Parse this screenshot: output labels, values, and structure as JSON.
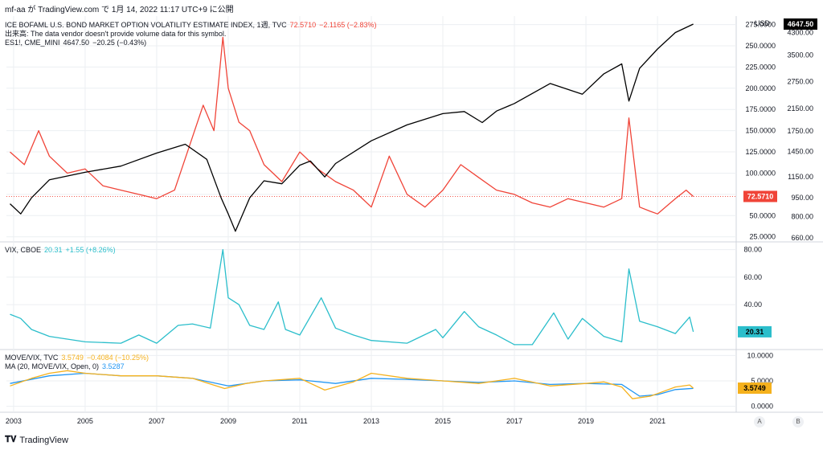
{
  "header": {
    "text": "mf-aa が TradingView.com で 1月 14, 2022 11:17 UTC+9 に公開"
  },
  "footer": {
    "brand": "TradingView"
  },
  "buttons": {
    "a": "A",
    "b": "B"
  },
  "colors": {
    "move": "#f04438",
    "es": "#000000",
    "vix": "#2bbecb",
    "ratio": "#f5b11d",
    "ma": "#2196f3",
    "grid": "#eceff2"
  },
  "pane1": {
    "legend": {
      "move_title": "ICE BOFAML U.S. BOND MARKET OPTION VOLATILITY ESTIMATE INDEX, 1週, TVC",
      "move_value": "72.5710",
      "move_change": "−2.1165 (−2.83%)",
      "volume_note": "出来高: The data vendor doesn't provide volume data for this symbol.",
      "es_title": "ES1!, CME_MINI",
      "es_value": "4647.50",
      "es_change": "−20.25 (−0.43%)"
    },
    "left_axis_currency": "USD",
    "right_axis_currency": "USD",
    "right_axis_prefix": "5",
    "move_ticks": [
      "25.0000",
      "50.0000",
      "75.0000",
      "100.0000",
      "125.0000",
      "150.0000",
      "175.0000",
      "200.0000",
      "225.0000",
      "250.0000",
      "275.0000"
    ],
    "es_ticks": [
      "660.00",
      "800.00",
      "950.00",
      "1150.00",
      "1450.00",
      "1750.00",
      "2150.00",
      "2750.00",
      "3500.00",
      "4300.00"
    ],
    "move_last": "72.5710",
    "es_last": "4647.50"
  },
  "pane2": {
    "legend": {
      "title": "VIX, CBOE",
      "value": "20.31",
      "change": "+1.55 (+8.26%)"
    },
    "ticks": [
      "40.00",
      "60.00",
      "80.00"
    ],
    "last": "20.31"
  },
  "pane3": {
    "legend": {
      "title": "MOVE/VIX, TVC",
      "value": "3.5749",
      "change": "−0.4084 (−10.25%)",
      "ma_title": "MA (20, MOVE/VIX, Open, 0)",
      "ma_value": "3.5287"
    },
    "ticks": [
      "0.0000",
      "5.0000",
      "10.0000"
    ],
    "last": "3.5749"
  },
  "x_ticks": [
    "2003",
    "2005",
    "2007",
    "2009",
    "2011",
    "2013",
    "2015",
    "2017",
    "2019",
    "2021"
  ],
  "chart_data": [
    {
      "type": "line",
      "x_unit": "year",
      "series": [
        {
          "name": "ICE BOFAML U.S. BOND MARKET OPTION VOLATILITY ESTIMATE INDEX, 1週, TVC",
          "axis": "left",
          "x": [
            2002.9,
            2003.3,
            2003.7,
            2004.0,
            2004.5,
            2005.0,
            2005.5,
            2006.0,
            2006.5,
            2007.0,
            2007.5,
            2007.9,
            2008.3,
            2008.6,
            2008.85,
            2009.0,
            2009.3,
            2009.6,
            2010.0,
            2010.5,
            2011.0,
            2011.5,
            2012.0,
            2012.5,
            2013.0,
            2013.5,
            2014.0,
            2014.5,
            2015.0,
            2015.5,
            2016.0,
            2016.5,
            2017.0,
            2017.5,
            2018.0,
            2018.5,
            2019.0,
            2019.5,
            2020.0,
            2020.2,
            2020.5,
            2020.8,
            2021.0,
            2021.5,
            2021.8,
            2022.0
          ],
          "y": [
            125,
            110,
            150,
            120,
            100,
            105,
            85,
            80,
            75,
            70,
            80,
            130,
            180,
            150,
            260,
            200,
            160,
            150,
            110,
            90,
            125,
            105,
            90,
            80,
            60,
            120,
            75,
            60,
            80,
            110,
            95,
            80,
            75,
            65,
            60,
            70,
            65,
            60,
            70,
            165,
            60,
            55,
            52,
            70,
            80,
            72.571
          ]
        },
        {
          "name": "ES1!, CME_MINI",
          "axis": "right",
          "x": [
            2002.9,
            2003.2,
            2003.5,
            2004.0,
            2005.0,
            2006.0,
            2007.0,
            2007.8,
            2008.4,
            2008.8,
            2009.0,
            2009.2,
            2009.6,
            2010.0,
            2010.5,
            2011.0,
            2011.3,
            2011.7,
            2012.0,
            2013.0,
            2014.0,
            2015.0,
            2015.6,
            2016.1,
            2016.5,
            2017.0,
            2018.0,
            2018.9,
            2019.5,
            2020.0,
            2020.2,
            2020.5,
            2021.0,
            2021.5,
            2022.0
          ],
          "y": [
            900,
            820,
            950,
            1120,
            1200,
            1270,
            1430,
            1550,
            1350,
            950,
            820,
            700,
            950,
            1110,
            1080,
            1280,
            1330,
            1150,
            1300,
            1600,
            1850,
            2050,
            2090,
            1890,
            2100,
            2250,
            2700,
            2450,
            2950,
            3230,
            2300,
            3100,
            3700,
            4300,
            4647.5
          ]
        }
      ],
      "left_ylim": [
        20,
        285
      ],
      "right_ylim": [
        640,
        5000
      ],
      "right_scale": "log"
    },
    {
      "type": "line",
      "x_unit": "year",
      "series": [
        {
          "name": "VIX, CBOE",
          "x": [
            2002.9,
            2003.2,
            2003.5,
            2004.0,
            2005.0,
            2006.0,
            2006.5,
            2007.0,
            2007.6,
            2008.0,
            2008.5,
            2008.85,
            2009.0,
            2009.3,
            2009.6,
            2010.0,
            2010.4,
            2010.6,
            2011.0,
            2011.6,
            2012.0,
            2012.5,
            2013.0,
            2014.0,
            2014.8,
            2015.0,
            2015.6,
            2016.0,
            2016.5,
            2017.0,
            2017.5,
            2018.1,
            2018.5,
            2018.9,
            2019.5,
            2020.0,
            2020.2,
            2020.5,
            2021.0,
            2021.5,
            2021.9,
            2022.0
          ],
          "y": [
            33,
            30,
            22,
            17,
            13,
            12,
            18,
            12,
            25,
            26,
            23,
            80,
            45,
            40,
            25,
            22,
            42,
            22,
            18,
            45,
            23,
            18,
            14,
            12,
            22,
            16,
            35,
            24,
            18,
            11,
            11,
            34,
            15,
            30,
            17,
            13,
            66,
            28,
            24,
            19,
            31,
            20.31
          ]
        }
      ],
      "ylim": [
        8,
        85
      ]
    },
    {
      "type": "line",
      "x_unit": "year",
      "series": [
        {
          "name": "MOVE/VIX, TVC",
          "x": [
            2002.9,
            2003.5,
            2004.0,
            2004.5,
            2005.0,
            2006.0,
            2007.0,
            2008.0,
            2008.9,
            2009.5,
            2010.0,
            2011.0,
            2011.7,
            2012.5,
            2013.0,
            2014.0,
            2015.0,
            2016.0,
            2017.0,
            2018.0,
            2019.0,
            2019.5,
            2020.0,
            2020.3,
            2020.8,
            2021.0,
            2021.5,
            2021.9,
            2022.0
          ],
          "y": [
            4.0,
            5.5,
            6.5,
            7.0,
            6.5,
            6.0,
            6.0,
            5.5,
            3.5,
            4.5,
            5.0,
            5.5,
            3.2,
            4.8,
            6.5,
            5.5,
            5.0,
            4.5,
            5.5,
            4.0,
            4.5,
            4.8,
            3.8,
            1.5,
            2.0,
            2.5,
            3.8,
            4.2,
            3.5749
          ]
        },
        {
          "name": "MA (20, MOVE/VIX, Open, 0)",
          "x": [
            2002.9,
            2004.0,
            2005.0,
            2006.0,
            2007.0,
            2008.0,
            2009.0,
            2010.0,
            2011.0,
            2012.0,
            2013.0,
            2014.0,
            2015.0,
            2016.0,
            2017.0,
            2018.0,
            2019.0,
            2020.0,
            2020.5,
            2021.0,
            2021.5,
            2022.0
          ],
          "y": [
            4.5,
            6.0,
            6.5,
            6.0,
            6.0,
            5.5,
            4.0,
            5.0,
            5.2,
            4.5,
            5.5,
            5.3,
            5.0,
            4.7,
            5.0,
            4.3,
            4.5,
            4.3,
            2.0,
            2.3,
            3.3,
            3.5287
          ]
        }
      ],
      "ylim": [
        -1,
        11
      ]
    }
  ]
}
